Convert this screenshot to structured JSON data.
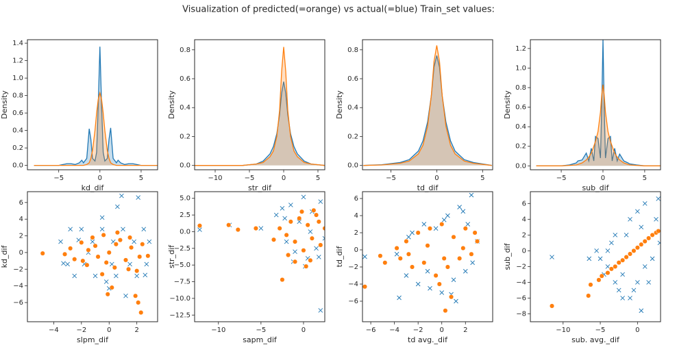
{
  "title": "Visualization of predicted(=orange) vs actual(=blue) Train_set values:",
  "chart_data": [
    {
      "type": "kde",
      "x_label": "kd_dif",
      "y_label": "Density",
      "xlim": [
        -8.8,
        7
      ],
      "ylim": [
        -0.05,
        1.44
      ],
      "xticks": [
        {
          "value": -5,
          "label": "−5"
        },
        0,
        5
      ],
      "yticks": [
        {
          "value": 0,
          "label": "0.0"
        },
        {
          "value": 0.2,
          "label": "0.2"
        },
        {
          "value": 0.4,
          "label": "0.4"
        },
        {
          "value": 0.6,
          "label": "0.6"
        },
        {
          "value": 0.8,
          "label": "0.8"
        },
        {
          "value": 1,
          "label": "1.0"
        },
        {
          "value": 1.2,
          "label": "1.2"
        },
        {
          "value": 1.4,
          "label": "1.4"
        }
      ],
      "x": [
        -8,
        -5,
        -4,
        -3.5,
        -3,
        -2.5,
        -2.2,
        -2,
        -1.6,
        -1.3,
        -1.1,
        -0.9,
        -0.6,
        -0.4,
        -0.2,
        0,
        0.2,
        0.4,
        0.6,
        0.9,
        1.1,
        1.3,
        1.6,
        2,
        2.2,
        2.5,
        3,
        3.5,
        4,
        5,
        7
      ],
      "series": [
        {
          "color": "#1f77b4",
          "values": [
            0,
            0,
            0.02,
            0.02,
            0.01,
            0.03,
            0.06,
            0.03,
            0.08,
            0.42,
            0.3,
            0.08,
            0.05,
            0.15,
            0.7,
            1.36,
            0.7,
            0.15,
            0.05,
            0.08,
            0.3,
            0.43,
            0.08,
            0.03,
            0.06,
            0.03,
            0.01,
            0.02,
            0.02,
            0,
            0
          ]
        },
        {
          "color": "#ff7f0e",
          "values": [
            0,
            0,
            0,
            0,
            0,
            0,
            0,
            0,
            0.01,
            0.03,
            0.08,
            0.17,
            0.4,
            0.6,
            0.76,
            0.83,
            0.76,
            0.6,
            0.4,
            0.17,
            0.08,
            0.03,
            0.01,
            0,
            0,
            0,
            0,
            0,
            0,
            0,
            0
          ]
        }
      ]
    },
    {
      "type": "kde",
      "x_label": "str_dif",
      "y_label": "Density",
      "xlim": [
        -13,
        6
      ],
      "ylim": [
        -0.03,
        0.87
      ],
      "xticks": [
        {
          "value": -10,
          "label": "−10"
        },
        {
          "value": -5,
          "label": "−5"
        },
        0,
        5
      ],
      "yticks": [
        {
          "value": 0,
          "label": "0.0"
        },
        {
          "value": 0.2,
          "label": "0.2"
        },
        {
          "value": 0.4,
          "label": "0.4"
        },
        {
          "value": 0.6,
          "label": "0.6"
        },
        {
          "value": 0.8,
          "label": "0.8"
        }
      ],
      "x": [
        -13,
        -6,
        -4,
        -3,
        -2,
        -1.5,
        -1,
        -0.6,
        -0.3,
        0,
        0.3,
        0.6,
        1,
        1.5,
        2,
        3,
        4,
        6
      ],
      "series": [
        {
          "color": "#1f77b4",
          "values": [
            0,
            0,
            0.01,
            0.03,
            0.08,
            0.13,
            0.22,
            0.35,
            0.5,
            0.58,
            0.5,
            0.35,
            0.22,
            0.13,
            0.08,
            0.03,
            0.01,
            0
          ]
        },
        {
          "color": "#ff7f0e",
          "values": [
            0,
            0,
            0.01,
            0.02,
            0.06,
            0.1,
            0.2,
            0.38,
            0.65,
            0.82,
            0.65,
            0.38,
            0.2,
            0.1,
            0.06,
            0.02,
            0.01,
            0
          ]
        }
      ]
    },
    {
      "type": "kde",
      "x_label": "td_dif",
      "y_label": "Density",
      "xlim": [
        -8.1,
        6.1
      ],
      "ylim": [
        -0.03,
        0.87
      ],
      "xticks": [
        {
          "value": -5,
          "label": "−5"
        },
        0,
        5
      ],
      "yticks": [
        {
          "value": 0,
          "label": "0.0"
        },
        {
          "value": 0.2,
          "label": "0.2"
        },
        {
          "value": 0.4,
          "label": "0.4"
        },
        {
          "value": 0.6,
          "label": "0.6"
        },
        {
          "value": 0.8,
          "label": "0.8"
        }
      ],
      "x": [
        -8,
        -6,
        -4,
        -3,
        -2,
        -1.5,
        -1,
        -0.6,
        -0.3,
        0,
        0.3,
        0.6,
        1,
        1.5,
        2,
        3,
        4,
        6
      ],
      "series": [
        {
          "color": "#1f77b4",
          "values": [
            0,
            0.005,
            0.02,
            0.04,
            0.1,
            0.17,
            0.3,
            0.48,
            0.68,
            0.76,
            0.68,
            0.48,
            0.3,
            0.17,
            0.1,
            0.04,
            0.02,
            0
          ]
        },
        {
          "color": "#ff7f0e",
          "values": [
            0,
            0.003,
            0.015,
            0.03,
            0.08,
            0.14,
            0.27,
            0.48,
            0.72,
            0.83,
            0.72,
            0.48,
            0.27,
            0.14,
            0.08,
            0.03,
            0.015,
            0
          ]
        }
      ]
    },
    {
      "type": "kde",
      "x_label": "sub_dif",
      "y_label": "Density",
      "xlim": [
        -8.7,
        6.9
      ],
      "ylim": [
        -0.04,
        1.29
      ],
      "xticks": [
        {
          "value": -5,
          "label": "−5"
        },
        0,
        5
      ],
      "yticks": [
        {
          "value": 0,
          "label": "0.0"
        },
        {
          "value": 0.2,
          "label": "0.2"
        },
        {
          "value": 0.4,
          "label": "0.4"
        },
        {
          "value": 0.6,
          "label": "0.6"
        },
        {
          "value": 0.8,
          "label": "0.8"
        },
        {
          "value": 1,
          "label": "1.0"
        },
        {
          "value": 1.2,
          "label": "1.2"
        }
      ],
      "x": [
        -8,
        -5,
        -4,
        -3.2,
        -3,
        -2.5,
        -2,
        -1.7,
        -1.4,
        -1.1,
        -0.9,
        -0.6,
        -0.3,
        -0.15,
        0,
        0.15,
        0.3,
        0.6,
        0.9,
        1.1,
        1.4,
        1.7,
        2,
        2.5,
        3,
        3.2,
        4,
        5,
        7
      ],
      "series": [
        {
          "color": "#1f77b4",
          "values": [
            0,
            0,
            0.01,
            0.03,
            0.05,
            0.06,
            0.13,
            0.05,
            0.18,
            0.05,
            0.3,
            0.28,
            0.08,
            0.6,
            1.29,
            0.6,
            0.08,
            0.28,
            0.3,
            0.05,
            0.18,
            0.05,
            0.12,
            0.05,
            0.03,
            0.02,
            0.01,
            0,
            0
          ]
        },
        {
          "color": "#ff7f0e",
          "values": [
            0,
            0,
            0.005,
            0.01,
            0.015,
            0.03,
            0.06,
            0.09,
            0.13,
            0.2,
            0.25,
            0.35,
            0.55,
            0.72,
            0.83,
            0.72,
            0.55,
            0.35,
            0.25,
            0.2,
            0.13,
            0.09,
            0.06,
            0.03,
            0.015,
            0.01,
            0.005,
            0,
            0
          ]
        }
      ]
    },
    {
      "type": "scatter",
      "x_label": "slpm_dif",
      "y_label": "kd_dif",
      "xlim": [
        -5.9,
        3.5
      ],
      "ylim": [
        -8.3,
        7.3
      ],
      "xticks": [
        {
          "value": -4,
          "label": "−4"
        },
        {
          "value": -2,
          "label": "−2"
        },
        0,
        2
      ],
      "yticks": [
        {
          "value": -6,
          "label": "−6"
        },
        {
          "value": -4,
          "label": "−4"
        },
        {
          "value": -2,
          "label": "−2"
        },
        0,
        2,
        4,
        6
      ],
      "series": [
        {
          "color": "#1f77b4",
          "marker": "x",
          "x": [
            -3.5,
            -2.8,
            -2,
            -1.2,
            -0.5,
            0.3,
            1,
            1.8,
            2.5,
            2.9,
            -3,
            -1.8,
            0.2,
            1.5,
            2.7,
            -2.5,
            -1,
            0.5,
            2,
            -3.3,
            -1.5,
            0,
            1.2,
            2.6,
            0.9,
            2.1,
            0.6,
            -0.5,
            -0.2,
            -2.2
          ],
          "values": [
            1.3,
            2.8,
            2.8,
            1.3,
            2.8,
            1.3,
            2.8,
            1.3,
            2.8,
            1.3,
            -1.4,
            -1.4,
            -1.4,
            -1.4,
            -1.4,
            -2.8,
            -2.8,
            -2.8,
            -2.8,
            -1.3,
            0,
            -4.3,
            -5.2,
            -2.7,
            6.8,
            6.6,
            5.5,
            4.2,
            -3.5,
            1.5
          ]
        },
        {
          "color": "#ff7f0e",
          "marker": "o",
          "x": [
            -4.8,
            -3.2,
            -2.8,
            -2.5,
            -2,
            -1.6,
            -1.2,
            -0.8,
            -0.4,
            0,
            0.4,
            0.8,
            1.2,
            1.6,
            2,
            2.4,
            2.8,
            -1.9,
            -1,
            -0.2,
            0.6,
            1.4,
            2.2,
            -1.5,
            -0.5,
            0.5,
            1.5,
            2.1,
            2.3,
            1.9,
            0.2,
            -0.1
          ],
          "values": [
            -0.1,
            -0.2,
            0.5,
            -0.8,
            1.2,
            -1.5,
            1.8,
            -0.5,
            2.1,
            0,
            -1.8,
            1.5,
            -0.9,
            0.6,
            -2.2,
            1,
            -0.4,
            -1,
            0.8,
            -1.2,
            2.4,
            -2,
            -0.5,
            0.3,
            -2.6,
            1,
            1.8,
            -6,
            -7.2,
            -5.2,
            -4.2,
            -5
          ]
        }
      ]
    },
    {
      "type": "scatter",
      "x_label": "sapm_dif",
      "y_label": "str_dif",
      "xlim": [
        -12.8,
        2.5
      ],
      "ylim": [
        -13.5,
        6
      ],
      "xticks": [
        {
          "value": -10,
          "label": "−10"
        },
        {
          "value": -5,
          "label": "−5"
        },
        0
      ],
      "yticks": [
        {
          "value": -12.5,
          "label": "−12.5"
        },
        {
          "value": -10,
          "label": "−10.0"
        },
        {
          "value": -7.5,
          "label": "−7.5"
        },
        {
          "value": -5,
          "label": "−5.0"
        },
        {
          "value": -2.5,
          "label": "−2.5"
        },
        {
          "value": 0,
          "label": "0.0"
        },
        {
          "value": 2.5,
          "label": "2.5"
        },
        {
          "value": 5,
          "label": "5.0"
        }
      ],
      "series": [
        {
          "color": "#1f77b4",
          "marker": "x",
          "x": [
            -12.2,
            -8.7,
            -5,
            -3.2,
            -2.5,
            -2,
            -1.5,
            -1,
            -0.5,
            0,
            0.5,
            1,
            1.5,
            2,
            2.5,
            3,
            -1.2,
            0.2,
            1.8,
            2.8,
            -2.2,
            0.8,
            2
          ],
          "values": [
            0.3,
            1,
            0.5,
            2.5,
            3.5,
            -1.5,
            4,
            -3,
            1.5,
            5.2,
            -4,
            3,
            -2.5,
            4.5,
            -1,
            1,
            -4.5,
            -5.2,
            -3.8,
            2.5,
            2,
            0,
            -11.8
          ]
        },
        {
          "color": "#ff7f0e",
          "marker": "o",
          "x": [
            -12.2,
            -8.8,
            -7.7,
            -5.6,
            -3.5,
            -2.5,
            -2.8,
            -2,
            -1.5,
            -1,
            -0.5,
            0,
            0.5,
            1,
            1.5,
            2,
            2.5,
            3,
            -1.8,
            -0.2,
            0.8,
            1.8,
            2.8,
            0.3,
            -1,
            1.2
          ],
          "values": [
            0.9,
            1,
            0.3,
            0.5,
            -1.2,
            -7.2,
            0.5,
            -0.5,
            1.5,
            -1.5,
            2,
            -2.8,
            1,
            -1,
            2.5,
            -2,
            0.5,
            -0.3,
            -3.5,
            3,
            -4.3,
            1.5,
            -1.5,
            -5.2,
            -4.5,
            3.2
          ]
        }
      ]
    },
    {
      "type": "scatter",
      "x_label": "td avg._dif",
      "y_label": "td_dif",
      "xlim": [
        -6.7,
        4.3
      ],
      "ylim": [
        -8.4,
        6.8
      ],
      "xticks": [
        {
          "value": -6,
          "label": "−6"
        },
        {
          "value": -4,
          "label": "−4"
        },
        {
          "value": -2,
          "label": "−2"
        },
        0,
        2
      ],
      "yticks": [
        {
          "value": -6,
          "label": "−6"
        },
        {
          "value": -4,
          "label": "−4"
        },
        {
          "value": -2,
          "label": "−2"
        },
        0,
        2,
        4,
        6
      ],
      "series": [
        {
          "color": "#1f77b4",
          "marker": "x",
          "x": [
            -6.5,
            -3.6,
            -3.8,
            -3,
            -2.5,
            -2,
            -1.5,
            -1,
            -0.5,
            0,
            0.5,
            1,
            1.5,
            2,
            2.5,
            3,
            -2.8,
            -1.2,
            0.2,
            1.8,
            2.6,
            1.2,
            0.8,
            2.2
          ],
          "values": [
            -0.8,
            -5.6,
            -0.5,
            -3,
            2,
            -4,
            3,
            -4.5,
            2.5,
            -5,
            4,
            -3.5,
            5,
            -2.5,
            6.4,
            1,
            1.5,
            -2.5,
            3.5,
            4.5,
            -1.5,
            -6,
            -5.2,
            3
          ]
        },
        {
          "color": "#ff7f0e",
          "marker": "o",
          "x": [
            -6.5,
            -5.2,
            -4.8,
            -3.8,
            -3.5,
            -3,
            -2.5,
            -2,
            -1.5,
            -1,
            -0.5,
            0,
            0.5,
            1,
            1.5,
            2,
            2.5,
            3,
            -2.8,
            -1.2,
            0.2,
            1.8,
            2.8,
            0.3,
            0.8,
            -0.2
          ],
          "values": [
            -4.3,
            -0.7,
            -1.5,
            0.2,
            -1,
            1,
            -2,
            2,
            -1.5,
            2.5,
            -3,
            3,
            -2,
            1.5,
            -1,
            2.5,
            -0.5,
            1,
            -0.5,
            0.5,
            -1,
            0.2,
            2,
            -7.1,
            -5.5,
            -4
          ]
        }
      ]
    },
    {
      "type": "scatter",
      "x_label": "sub. avg._dif",
      "y_label": "sub_dif",
      "xlim": [
        -14.4,
        3.1
      ],
      "ylim": [
        -9,
        7.5
      ],
      "xticks": [
        {
          "value": -10,
          "label": "−10"
        },
        {
          "value": -5,
          "label": "−5"
        },
        0
      ],
      "yticks": [
        {
          "value": -8,
          "label": "−8"
        },
        {
          "value": -6,
          "label": "−6"
        },
        {
          "value": -4,
          "label": "−4"
        },
        {
          "value": -2,
          "label": "−2"
        },
        0,
        2,
        4,
        6
      ],
      "series": [
        {
          "color": "#1f77b4",
          "marker": "x",
          "x": [
            -11.5,
            -6.5,
            -5,
            -4,
            -3,
            -2,
            -1,
            0,
            1,
            2,
            3,
            -5.5,
            -3.5,
            -1.5,
            0.5,
            2.5,
            -4.5,
            -2.5,
            -0.5,
            1.5,
            -3,
            -1,
            1,
            2.8,
            -2,
            0,
            -4,
            0.5
          ],
          "values": [
            -0.8,
            -1,
            -1,
            -2,
            -4,
            -6,
            -6,
            -4,
            -2,
            -1,
            1,
            0,
            1,
            2,
            3,
            4,
            -3,
            -5,
            -5,
            -4,
            2,
            4,
            6,
            6.6,
            -3,
            5,
            0,
            -7.6
          ]
        },
        {
          "color": "#ff7f0e",
          "marker": "o",
          "x": [
            -11.5,
            -6.6,
            -6.3,
            -5.2,
            -4.8,
            -4,
            -3.5,
            -3,
            -2.5,
            -2,
            -1.5,
            -1,
            -0.5,
            0,
            0.5,
            1,
            1.5,
            2,
            2.5,
            2.8
          ],
          "values": [
            -7,
            -5.7,
            -4.3,
            -3.7,
            -3.2,
            -2.8,
            -2.3,
            -2,
            -1.5,
            -1.2,
            -0.8,
            -0.4,
            0,
            0.4,
            0.8,
            1.2,
            1.6,
            2,
            2.3,
            2.5
          ]
        }
      ]
    }
  ]
}
